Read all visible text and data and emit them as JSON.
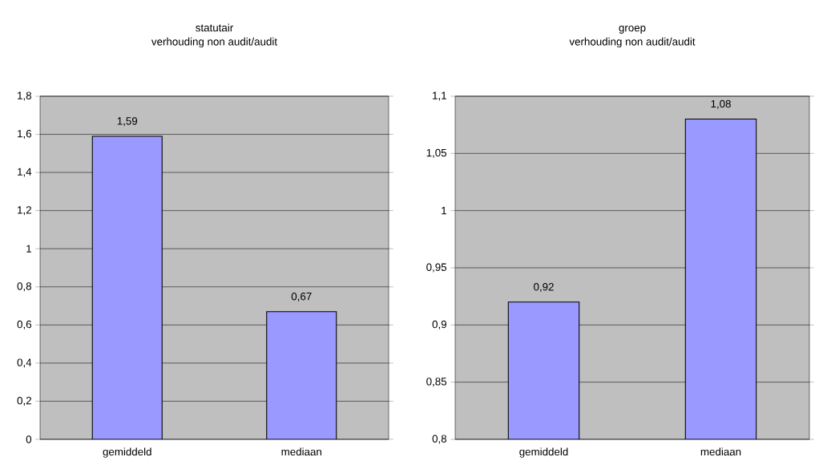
{
  "chart_data": [
    {
      "type": "bar",
      "title": "statutair",
      "subtitle": "verhouding non audit/audit",
      "categories": [
        "gemiddeld",
        "mediaan"
      ],
      "values": [
        1.59,
        0.67
      ],
      "value_labels": [
        "1,59",
        "0,67"
      ],
      "color": "#9999ff",
      "ylim": [
        0,
        1.8
      ],
      "yticks": [
        {
          "value": 0,
          "label": "0"
        },
        {
          "value": 0.2,
          "label": "0,2"
        },
        {
          "value": 0.4,
          "label": "0,4"
        },
        {
          "value": 0.6,
          "label": "0,6"
        },
        {
          "value": 0.8,
          "label": "0,8"
        },
        {
          "value": 1,
          "label": "1"
        },
        {
          "value": 1.2,
          "label": "1,2"
        },
        {
          "value": 1.4,
          "label": "1,4"
        },
        {
          "value": 1.6,
          "label": "1,6"
        },
        {
          "value": 1.8,
          "label": "1,8"
        }
      ],
      "grid": "y"
    },
    {
      "type": "bar",
      "title": "groep",
      "subtitle": "verhouding non audit/audit",
      "categories": [
        "gemiddeld",
        "mediaan"
      ],
      "values": [
        0.92,
        1.08
      ],
      "value_labels": [
        "0,92",
        "1,08"
      ],
      "color": "#9999ff",
      "ylim": [
        0.8,
        1.1
      ],
      "yticks": [
        {
          "value": 0.8,
          "label": "0,8"
        },
        {
          "value": 0.85,
          "label": "0,85"
        },
        {
          "value": 0.9,
          "label": "0,9"
        },
        {
          "value": 0.95,
          "label": "0,95"
        },
        {
          "value": 1,
          "label": "1"
        },
        {
          "value": 1.05,
          "label": "1,05"
        },
        {
          "value": 1.1,
          "label": "1,1"
        }
      ],
      "grid": "y"
    }
  ]
}
